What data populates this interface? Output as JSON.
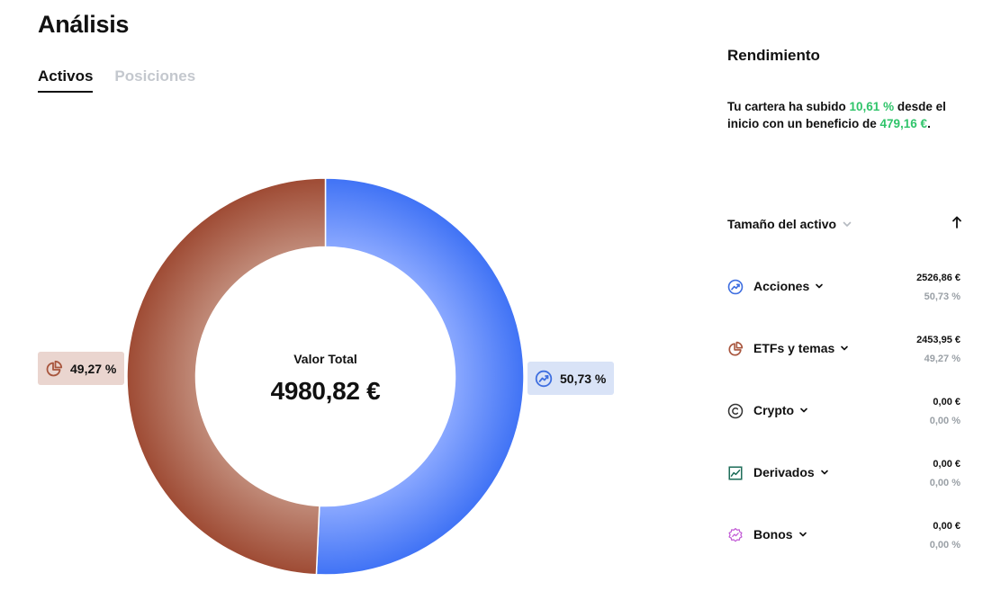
{
  "page": {
    "title": "Análisis"
  },
  "tabs": [
    {
      "label": "Activos",
      "active": true
    },
    {
      "label": "Posiciones",
      "active": false
    }
  ],
  "donut": {
    "center_label": "Valor Total",
    "center_value": "4980,82 €",
    "segments": [
      {
        "name": "Acciones",
        "share": 50.73,
        "label": "50,73 %",
        "color": "#4a7cf7",
        "icon": "chart-trend-icon"
      },
      {
        "name": "ETFs y temas",
        "share": 49.27,
        "label": "49,27 %",
        "color": "#a8553d",
        "icon": "pie-chart-icon"
      }
    ]
  },
  "performance": {
    "title": "Rendimiento",
    "summary_prefix": "Tu cartera ha subido ",
    "summary_pct": "10,61 %",
    "summary_mid": " desde el inicio con un beneficio de ",
    "summary_profit": "479,16 €",
    "summary_suffix": ".",
    "highlight_color": "#2fc46a"
  },
  "sort": {
    "label": "Tamaño del activo"
  },
  "assets": [
    {
      "name": "Acciones",
      "value": "2526,86 €",
      "pct": "50,73 %",
      "icon": "chart-trend-icon",
      "color": "#4a7cf7"
    },
    {
      "name": "ETFs y temas",
      "value": "2453,95 €",
      "pct": "49,27 %",
      "icon": "pie-chart-icon",
      "color": "#a8553d"
    },
    {
      "name": "Crypto",
      "value": "0,00 €",
      "pct": "0,00 %",
      "icon": "copyright-icon",
      "color": "#333333"
    },
    {
      "name": "Derivados",
      "value": "0,00 €",
      "pct": "0,00 %",
      "icon": "line-chart-icon",
      "color": "#1f6e5a"
    },
    {
      "name": "Bonos",
      "value": "0,00 €",
      "pct": "0,00 %",
      "icon": "badge-icon",
      "color": "#c25bd6"
    }
  ]
}
